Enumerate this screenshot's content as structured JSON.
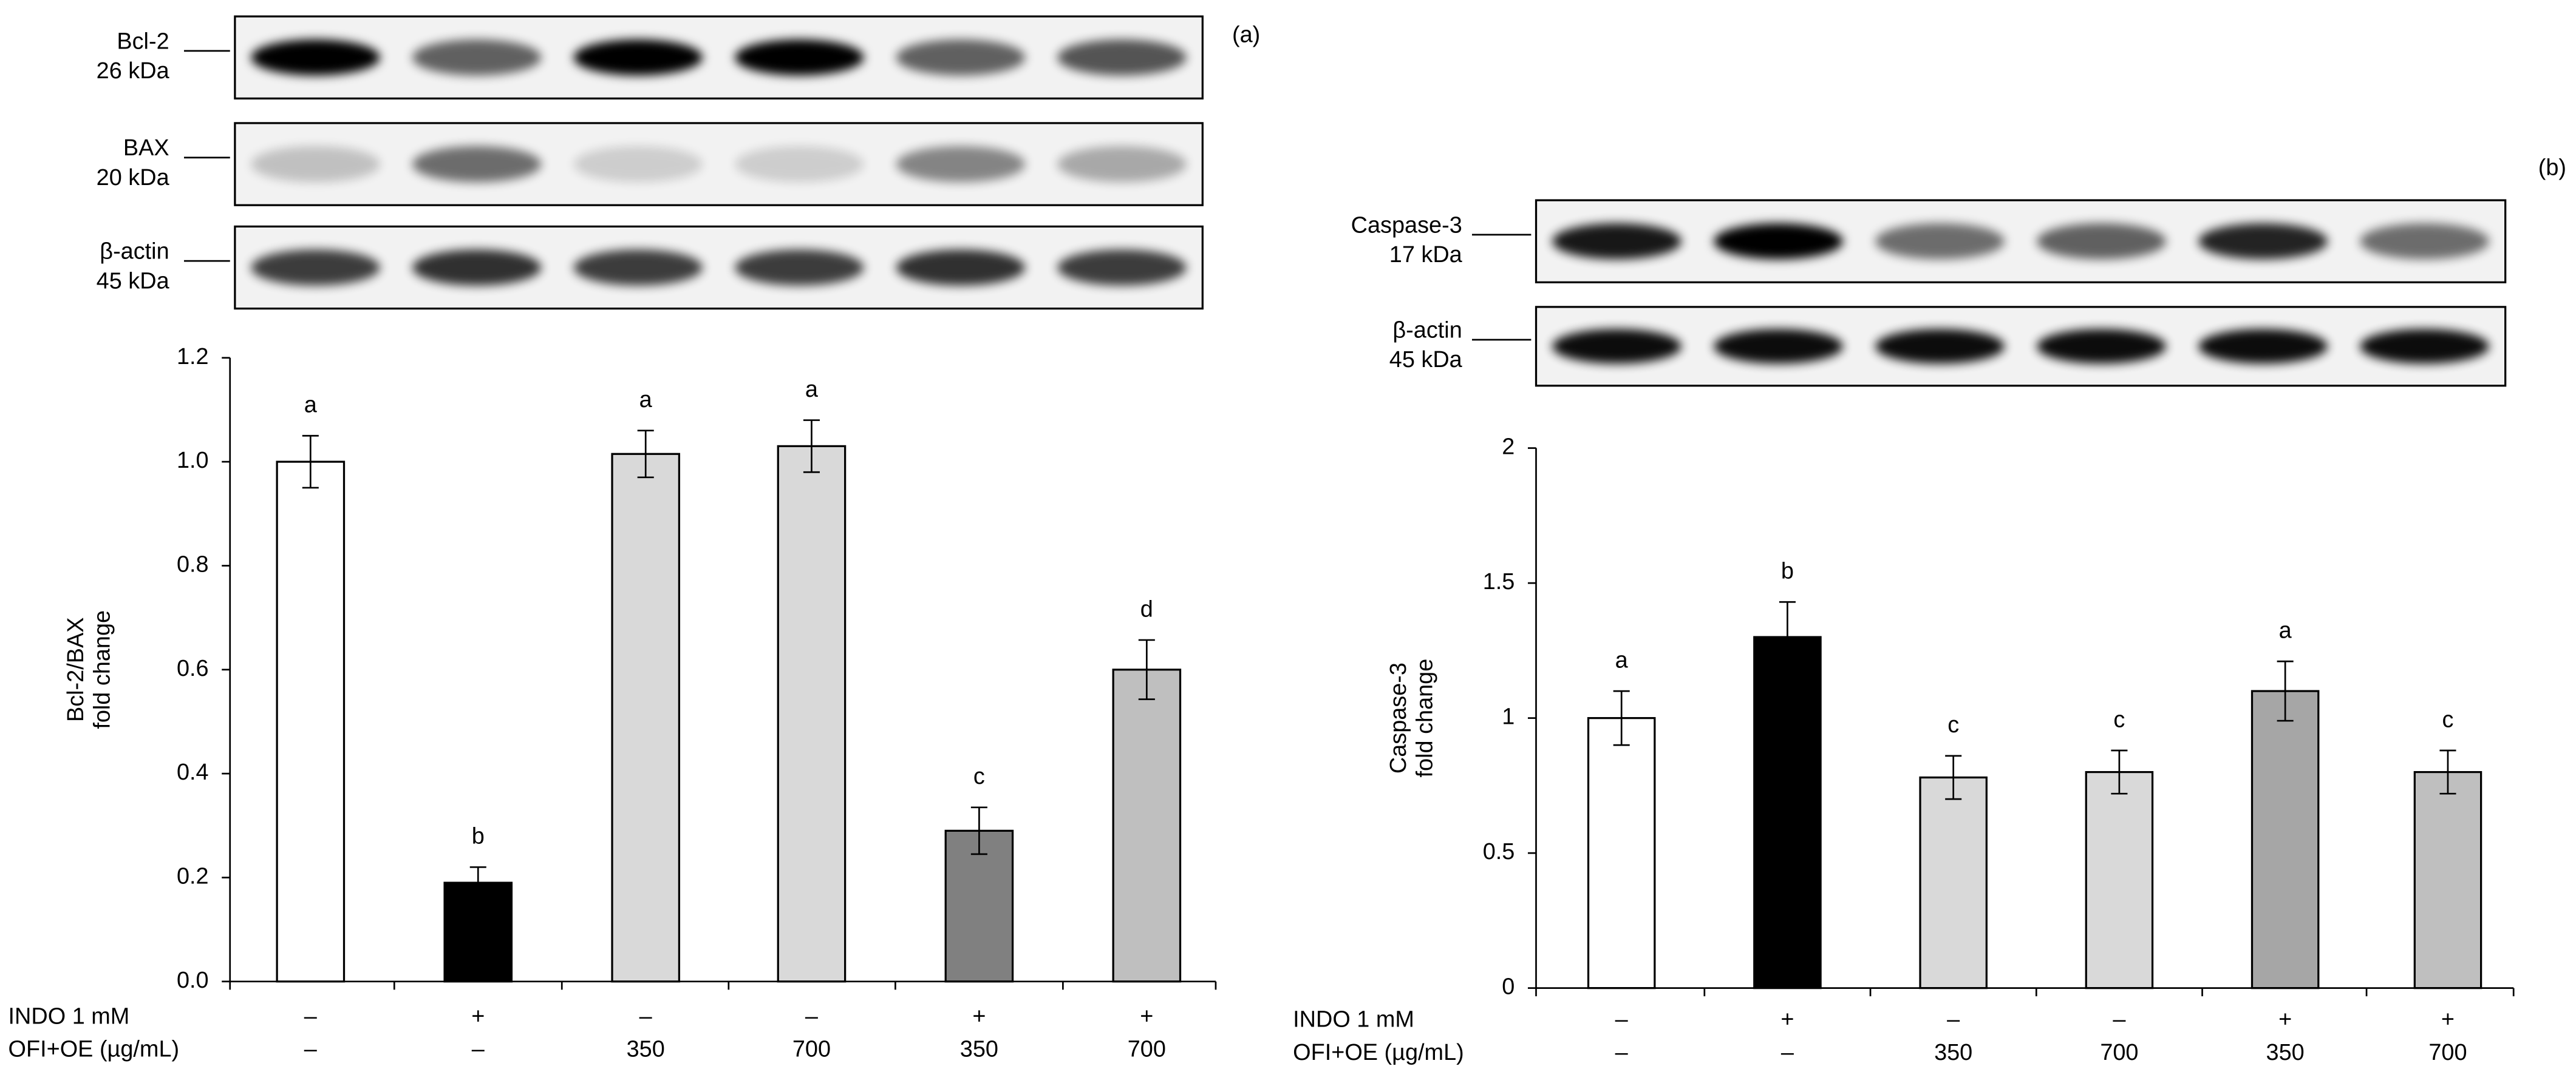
{
  "chart_data": [
    {
      "type": "bar",
      "panel": "(a)",
      "blots": [
        {
          "name": "Bcl-2",
          "size": "26 kDa"
        },
        {
          "name": "BAX",
          "size": "20 kDa"
        },
        {
          "name": "β-actin",
          "size": "45 kDa"
        }
      ],
      "ylabel": [
        "Bcl-2/BAX",
        "fold change"
      ],
      "rows": [
        {
          "name": "INDO 1 mM",
          "labels": [
            "–",
            "+",
            "–",
            "–",
            "+",
            "+"
          ]
        },
        {
          "name": "OFI+OE (µg/mL)",
          "labels": [
            "–",
            "–",
            "350",
            "700",
            "350",
            "700"
          ]
        }
      ],
      "values": [
        1.0,
        0.19,
        1.015,
        1.03,
        0.29,
        0.6
      ],
      "errors": [
        0.05,
        0.03,
        0.045,
        0.05,
        0.045,
        0.057
      ],
      "letters": [
        "a",
        "b",
        "a",
        "a",
        "c",
        "d"
      ],
      "colors": [
        "#ffffff",
        "#000000",
        "#d9d9d9",
        "#d9d9d9",
        "#808080",
        "#bfbfbf"
      ],
      "ylim": [
        0,
        1.2
      ],
      "yticks": [
        {
          "value": 0,
          "label": "0.0"
        },
        {
          "value": 0.2,
          "label": "0.2"
        },
        {
          "value": 0.4,
          "label": "0.4"
        },
        {
          "value": 0.6,
          "label": "0.6"
        },
        {
          "value": 0.8,
          "label": "0.8"
        },
        {
          "value": 1,
          "label": "1.0"
        },
        {
          "value": 1.2,
          "label": "1.2"
        }
      ]
    },
    {
      "type": "bar",
      "panel": "(b)",
      "blots": [
        {
          "name": "Caspase-3",
          "size": "17 kDa"
        },
        {
          "name": "β-actin",
          "size": "45 kDa"
        }
      ],
      "ylabel": [
        "Caspase-3",
        "fold change"
      ],
      "rows": [
        {
          "name": "INDO 1 mM",
          "labels": [
            "–",
            "+",
            "–",
            "–",
            "+",
            "+"
          ]
        },
        {
          "name": "OFI+OE (µg/mL)",
          "labels": [
            "–",
            "–",
            "350",
            "700",
            "350",
            "700"
          ]
        }
      ],
      "values": [
        1.0,
        1.3,
        0.78,
        0.8,
        1.1,
        0.8
      ],
      "errors": [
        0.1,
        0.13,
        0.08,
        0.08,
        0.11,
        0.08
      ],
      "letters": [
        "a",
        "b",
        "c",
        "c",
        "a",
        "c"
      ],
      "colors": [
        "#ffffff",
        "#000000",
        "#d9d9d9",
        "#d9d9d9",
        "#a6a6a6",
        "#bfbfbf"
      ],
      "ylim": [
        0,
        2
      ],
      "yticks": [
        0,
        0.5,
        1,
        1.5,
        2
      ]
    }
  ]
}
